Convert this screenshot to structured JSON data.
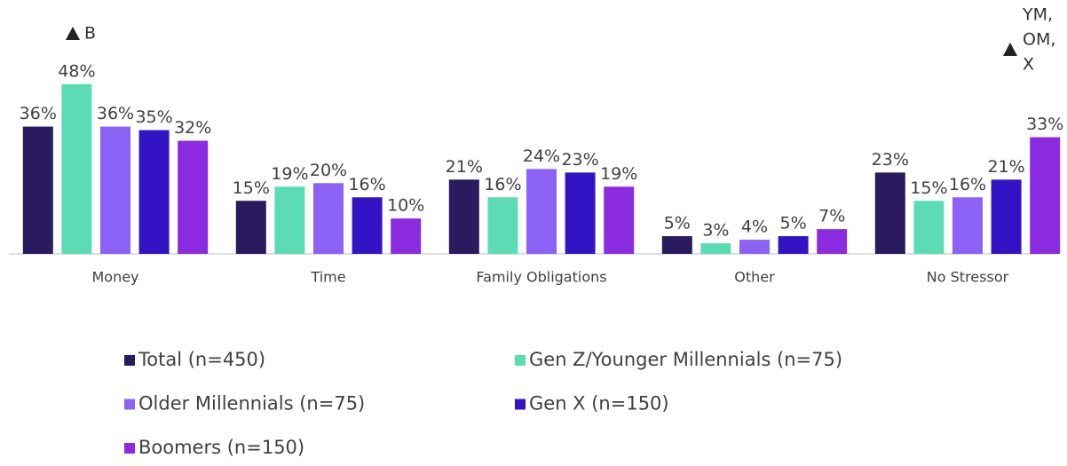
{
  "chart_data": {
    "type": "bar",
    "categories": [
      "Money",
      "Time",
      "Family Obligations",
      "Other",
      "No Stressor"
    ],
    "series": [
      {
        "name": "Total (n=450)",
        "color": "#2a1a5e",
        "values": [
          36,
          15,
          21,
          5,
          23
        ],
        "value_labels": [
          "36%",
          "15%",
          "21%",
          "5%",
          "23%"
        ]
      },
      {
        "name": "Gen Z/Younger Millennials (n=75)",
        "color": "#5cdcb4",
        "values": [
          48,
          19,
          16,
          3,
          15
        ],
        "value_labels": [
          "48%",
          "19%",
          "16%",
          "3%",
          "15%"
        ]
      },
      {
        "name": "Older Millennials (n=75)",
        "color": "#8c62f6",
        "values": [
          36,
          20,
          24,
          4,
          16
        ],
        "value_labels": [
          "36%",
          "20%",
          "24%",
          "4%",
          "16%"
        ]
      },
      {
        "name": "Gen X (n=150)",
        "color": "#3314c4",
        "values": [
          35,
          16,
          23,
          5,
          21
        ],
        "value_labels": [
          "35%",
          "16%",
          "23%",
          "5%",
          "21%"
        ]
      },
      {
        "name": "Boomers (n=150)",
        "color": "#8a2be0",
        "values": [
          32,
          10,
          19,
          7,
          33
        ],
        "value_labels": [
          "32%",
          "10%",
          "19%",
          "7%",
          "33%"
        ]
      }
    ],
    "annotations": [
      {
        "lines": [
          "B"
        ]
      },
      {
        "lines": [
          "YM,",
          "OM,",
          "X"
        ]
      }
    ],
    "ylim": [
      0,
      60
    ]
  }
}
